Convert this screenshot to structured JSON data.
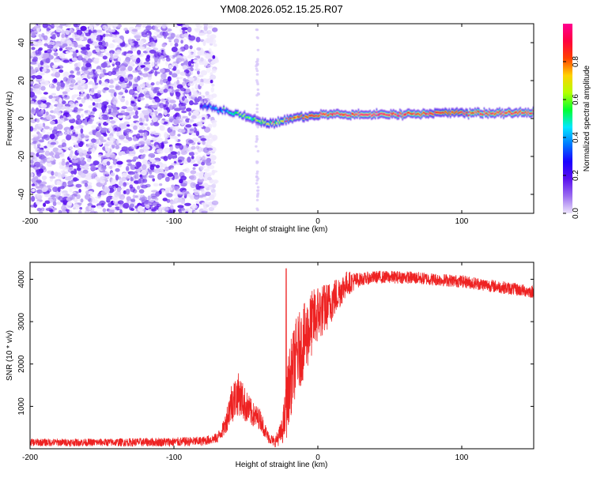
{
  "title": "YM08.2026.052.15.25.R07",
  "chart_data": [
    {
      "type": "heatmap",
      "name": "spectrogram",
      "xlabel": "Height of straight line (km)",
      "ylabel": "Frequency (Hz)",
      "xlim": [
        -200,
        150
      ],
      "ylim": [
        -50,
        50
      ],
      "xticks": [
        -200,
        -100,
        0,
        100
      ],
      "yticks": [
        -40,
        -20,
        0,
        20,
        40
      ],
      "xtick_labels": [
        "-200",
        "-100",
        "0",
        "100"
      ],
      "ytick_labels": [
        "-40",
        "-20",
        "0",
        "20",
        "40"
      ],
      "noise_region": {
        "x_from": -200,
        "x_to": -75
      },
      "noise_stripe": {
        "x": -42
      },
      "signal_track": {
        "x": [
          -82,
          -75,
          -70,
          -65,
          -60,
          -55,
          -50,
          -45,
          -40,
          -35,
          -30,
          -25,
          -20,
          -15,
          -10,
          -5,
          0,
          5,
          10,
          20,
          40,
          60,
          80,
          90,
          100,
          120,
          150
        ],
        "freq": [
          7,
          6,
          5,
          4,
          3,
          2,
          1,
          0,
          -2,
          -3,
          -2,
          -1,
          0,
          1,
          1,
          2,
          2,
          2,
          2,
          2,
          2,
          2,
          3,
          3,
          3,
          3,
          3
        ],
        "amplitude": [
          0.3,
          0.35,
          0.4,
          0.45,
          0.5,
          0.55,
          0.6,
          0.6,
          0.6,
          0.65,
          0.7,
          0.75,
          0.8,
          0.85,
          0.9,
          0.9,
          0.9,
          0.95,
          1.0,
          1.0,
          1.0,
          0.95,
          0.9,
          0.85,
          0.9,
          0.95,
          0.95
        ]
      },
      "colorbar": {
        "label": "Normalized spectral amplitude",
        "range": [
          0,
          1
        ],
        "ticks": [
          0.0,
          0.2,
          0.4,
          0.6,
          0.8
        ],
        "tick_labels": [
          "0.0",
          "0.2",
          "0.4",
          "0.6",
          "0.8"
        ],
        "colors": [
          "#ece4fb",
          "#9b6cf0",
          "#5a10ee",
          "#1a00ff",
          "#0078ff",
          "#00e8ff",
          "#00ff30",
          "#b4ff00",
          "#ffd200",
          "#ff4000",
          "#ff0040",
          "#ff0090"
        ]
      }
    },
    {
      "type": "line",
      "name": "snr",
      "xlabel": "Height of straight line (km)",
      "ylabel": "SNR (10 * v/v)",
      "xlim": [
        -200,
        150
      ],
      "ylim": [
        0,
        4400
      ],
      "xticks": [
        -200,
        -100,
        0,
        100
      ],
      "yticks": [
        1000,
        2000,
        3000,
        4000
      ],
      "xtick_labels": [
        "-200",
        "-100",
        "0",
        "100"
      ],
      "ytick_labels": [
        "1000",
        "2000",
        "3000",
        "4000"
      ],
      "color": "#ee2222",
      "envelope": {
        "x": [
          -200,
          -150,
          -100,
          -80,
          -70,
          -65,
          -60,
          -55,
          -50,
          -45,
          -40,
          -35,
          -30,
          -25,
          -22,
          -20,
          -15,
          -10,
          -5,
          0,
          5,
          10,
          15,
          20,
          30,
          40,
          60,
          80,
          100,
          120,
          150
        ],
        "mean": [
          150,
          150,
          160,
          180,
          250,
          500,
          1100,
          1300,
          1000,
          800,
          700,
          300,
          150,
          400,
          900,
          1500,
          2200,
          2500,
          2900,
          3200,
          3300,
          3500,
          3700,
          3900,
          4000,
          4050,
          4050,
          4000,
          3950,
          3850,
          3700
        ],
        "amp": [
          90,
          90,
          110,
          110,
          120,
          200,
          500,
          500,
          400,
          300,
          250,
          150,
          120,
          300,
          700,
          900,
          900,
          900,
          800,
          700,
          600,
          500,
          400,
          300,
          150,
          150,
          150,
          150,
          150,
          150,
          150
        ]
      },
      "spike": {
        "x": -22,
        "value": 4250
      }
    }
  ]
}
